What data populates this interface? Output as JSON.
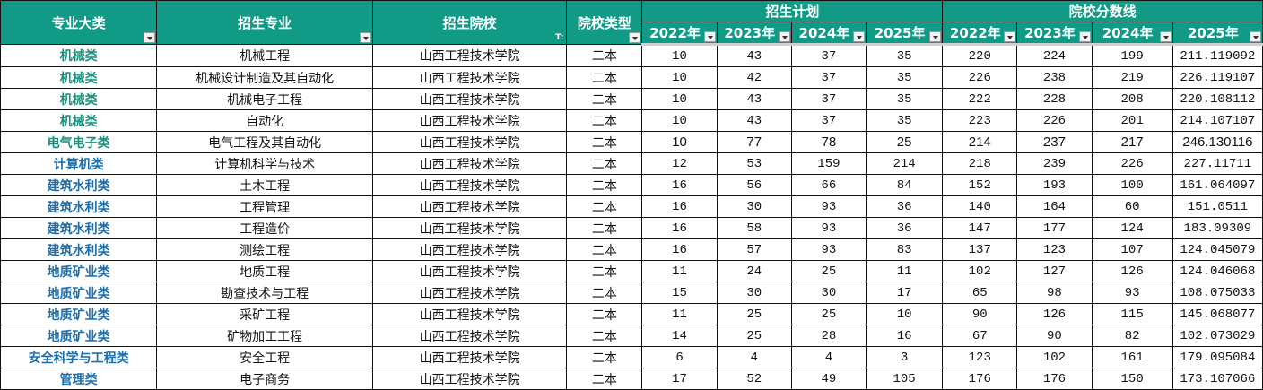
{
  "colors": {
    "header_bg": "#119a86",
    "header_text": "#ffffff",
    "cat_teal": "#1a8f7e",
    "cat_blue": "#1c6fad"
  },
  "header": {
    "category": "专业大类",
    "major": "招生专业",
    "school": "招生院校",
    "school_type": "院校类型",
    "plan_group": "招生计划",
    "score_group": "院校分数线",
    "plan_years": [
      "2022年",
      "2023年",
      "2024年",
      "2025年"
    ],
    "score_years": [
      "2022年",
      "2023年",
      "2024年",
      "2025年"
    ],
    "filter_icon": "▾",
    "active_filter_icon": "T:"
  },
  "rows": [
    {
      "category": "机械类",
      "cat_color": "teal",
      "major": "机械工程",
      "school": "山西工程技术学院",
      "type": "二本",
      "plan": [
        "10",
        "43",
        "37",
        "35"
      ],
      "score": [
        "220",
        "224",
        "199",
        "211.119092"
      ],
      "bold": false
    },
    {
      "category": "机械类",
      "cat_color": "teal",
      "major": "机械设计制造及其自动化",
      "school": "山西工程技术学院",
      "type": "二本",
      "plan": [
        "10",
        "42",
        "37",
        "35"
      ],
      "score": [
        "226",
        "238",
        "219",
        "226.119107"
      ],
      "bold": false
    },
    {
      "category": "机械类",
      "cat_color": "teal",
      "major": "机械电子工程",
      "school": "山西工程技术学院",
      "type": "二本",
      "plan": [
        "10",
        "43",
        "37",
        "35"
      ],
      "score": [
        "222",
        "228",
        "208",
        "220.108112"
      ],
      "bold": false
    },
    {
      "category": "机械类",
      "cat_color": "teal",
      "major": "自动化",
      "school": "山西工程技术学院",
      "type": "二本",
      "plan": [
        "10",
        "43",
        "37",
        "35"
      ],
      "score": [
        "223",
        "226",
        "201",
        "214.107107"
      ],
      "bold": false
    },
    {
      "category": "电气电子类",
      "cat_color": "teal",
      "major": "电气工程及其自动化",
      "school": "山西工程技术学院",
      "type": "二本",
      "plan": [
        "10",
        "77",
        "78",
        "25"
      ],
      "score": [
        "214",
        "237",
        "217",
        "246.130116"
      ],
      "bold": true
    },
    {
      "category": "计算机类",
      "cat_color": "blue",
      "major": "计算机科学与技术",
      "school": "山西工程技术学院",
      "type": "二本",
      "plan": [
        "12",
        "53",
        "159",
        "214"
      ],
      "score": [
        "218",
        "239",
        "226",
        "227.11711"
      ],
      "bold": false
    },
    {
      "category": "建筑水利类",
      "cat_color": "blue",
      "major": "土木工程",
      "school": "山西工程技术学院",
      "type": "二本",
      "plan": [
        "16",
        "56",
        "66",
        "84"
      ],
      "score": [
        "152",
        "193",
        "100",
        "161.064097"
      ],
      "bold": false
    },
    {
      "category": "建筑水利类",
      "cat_color": "blue",
      "major": "工程管理",
      "school": "山西工程技术学院",
      "type": "二本",
      "plan": [
        "16",
        "30",
        "93",
        "36"
      ],
      "score": [
        "140",
        "164",
        "60",
        "151.0511"
      ],
      "bold": false
    },
    {
      "category": "建筑水利类",
      "cat_color": "blue",
      "major": "工程造价",
      "school": "山西工程技术学院",
      "type": "二本",
      "plan": [
        "16",
        "58",
        "93",
        "36"
      ],
      "score": [
        "147",
        "177",
        "124",
        "183.09309"
      ],
      "bold": false
    },
    {
      "category": "建筑水利类",
      "cat_color": "blue",
      "major": "测绘工程",
      "school": "山西工程技术学院",
      "type": "二本",
      "plan": [
        "16",
        "57",
        "93",
        "83"
      ],
      "score": [
        "137",
        "123",
        "107",
        "124.045079"
      ],
      "bold": false
    },
    {
      "category": "地质矿业类",
      "cat_color": "blue",
      "major": "地质工程",
      "school": "山西工程技术学院",
      "type": "二本",
      "plan": [
        "11",
        "24",
        "25",
        "11"
      ],
      "score": [
        "102",
        "127",
        "126",
        "124.046068"
      ],
      "bold": false
    },
    {
      "category": "地质矿业类",
      "cat_color": "blue",
      "major": "勘查技术与工程",
      "school": "山西工程技术学院",
      "type": "二本",
      "plan": [
        "15",
        "30",
        "30",
        "17"
      ],
      "score": [
        "65",
        "98",
        "93",
        "108.075033"
      ],
      "bold": false
    },
    {
      "category": "地质矿业类",
      "cat_color": "blue",
      "major": "采矿工程",
      "school": "山西工程技术学院",
      "type": "二本",
      "plan": [
        "11",
        "25",
        "25",
        "10"
      ],
      "score": [
        "90",
        "126",
        "115",
        "145.068077"
      ],
      "bold": false
    },
    {
      "category": "地质矿业类",
      "cat_color": "blue",
      "major": "矿物加工工程",
      "school": "山西工程技术学院",
      "type": "二本",
      "plan": [
        "14",
        "25",
        "28",
        "16"
      ],
      "score": [
        "67",
        "90",
        "82",
        "102.073029"
      ],
      "bold": false
    },
    {
      "category": "安全科学与工程类",
      "cat_color": "blue",
      "major": "安全工程",
      "school": "山西工程技术学院",
      "type": "二本",
      "plan": [
        "6",
        "4",
        "4",
        "3"
      ],
      "score": [
        "123",
        "102",
        "161",
        "179.095084"
      ],
      "bold": false
    },
    {
      "category": "管理类",
      "cat_color": "blue",
      "major": "电子商务",
      "school": "山西工程技术学院",
      "type": "二本",
      "plan": [
        "17",
        "52",
        "49",
        "105"
      ],
      "score": [
        "176",
        "176",
        "150",
        "173.107066"
      ],
      "bold": false
    }
  ]
}
